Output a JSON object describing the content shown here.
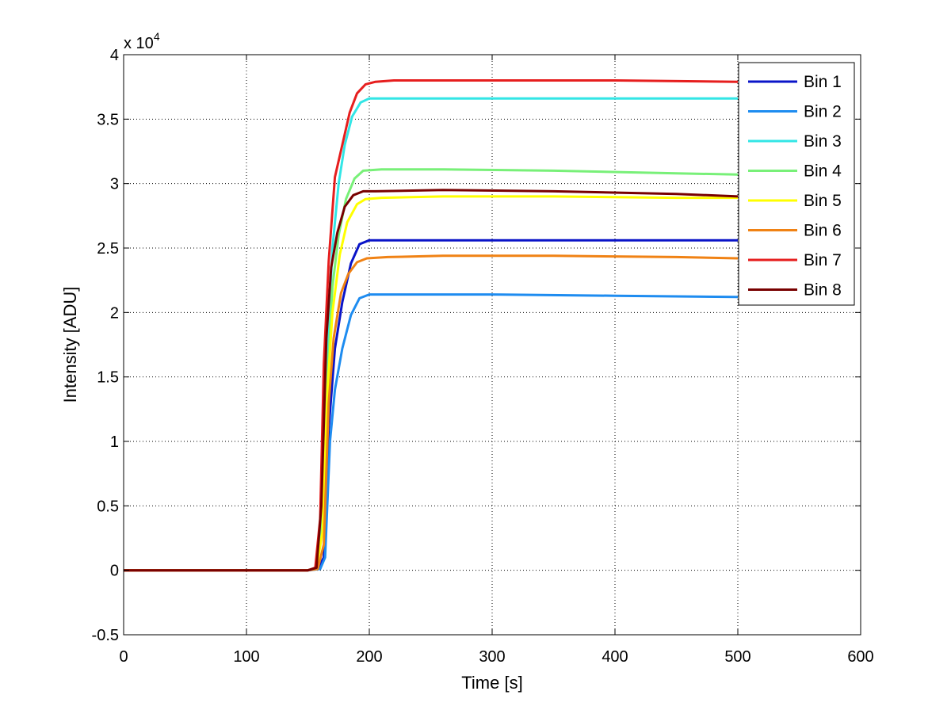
{
  "chart_data": {
    "type": "line",
    "title": "",
    "xlabel": "Time [s]",
    "ylabel": "Intensity [ADU]",
    "y_multiplier_label": "x 10",
    "y_multiplier_exponent": "4",
    "xlim": [
      0,
      600
    ],
    "ylim": [
      -0.5,
      4
    ],
    "xticks": [
      0,
      100,
      200,
      300,
      400,
      500,
      600
    ],
    "xtick_labels": [
      "0",
      "100",
      "200",
      "300",
      "400",
      "500",
      "600"
    ],
    "yticks": [
      -0.5,
      0,
      0.5,
      1,
      1.5,
      2,
      2.5,
      3,
      3.5,
      4
    ],
    "ytick_labels": [
      "-0.5",
      "0",
      "0.5",
      "1",
      "1.5",
      "2",
      "2.5",
      "3",
      "3.5",
      "4"
    ],
    "grid": true,
    "legend_position": "top-right",
    "series": [
      {
        "name": "Bin 1",
        "color": "#0a14c8",
        "x": [
          0,
          150,
          158,
          163,
          167,
          172,
          178,
          185,
          192,
          200,
          230,
          300,
          400,
          500
        ],
        "y": [
          0,
          0,
          0.01,
          0.1,
          1.1,
          1.72,
          2.08,
          2.38,
          2.53,
          2.56,
          2.56,
          2.56,
          2.56,
          2.56
        ]
      },
      {
        "name": "Bin 2",
        "color": "#1e8cf0",
        "x": [
          0,
          150,
          160,
          164,
          168,
          172,
          178,
          185,
          192,
          200,
          230,
          300,
          400,
          500
        ],
        "y": [
          0,
          0,
          0.01,
          0.1,
          1.0,
          1.4,
          1.72,
          1.98,
          2.11,
          2.14,
          2.14,
          2.14,
          2.13,
          2.12
        ]
      },
      {
        "name": "Bin 3",
        "color": "#32e6e6",
        "x": [
          0,
          150,
          157,
          162,
          166,
          170,
          175,
          180,
          186,
          193,
          200,
          230,
          300,
          400,
          500
        ],
        "y": [
          0,
          0,
          0.02,
          0.4,
          1.7,
          2.5,
          3.0,
          3.3,
          3.52,
          3.63,
          3.66,
          3.66,
          3.66,
          3.66,
          3.66
        ]
      },
      {
        "name": "Bin 4",
        "color": "#78f078",
        "x": [
          0,
          150,
          157,
          162,
          166,
          170,
          175,
          181,
          188,
          195,
          210,
          260,
          350,
          450,
          500
        ],
        "y": [
          0,
          0,
          0.02,
          0.4,
          1.5,
          2.2,
          2.6,
          2.88,
          3.04,
          3.1,
          3.11,
          3.11,
          3.1,
          3.08,
          3.07
        ]
      },
      {
        "name": "Bin 5",
        "color": "#ffff00",
        "x": [
          0,
          150,
          157,
          162,
          166,
          170,
          176,
          182,
          190,
          197,
          210,
          260,
          350,
          450,
          500
        ],
        "y": [
          0,
          0,
          0.02,
          0.3,
          1.4,
          2.0,
          2.45,
          2.7,
          2.84,
          2.88,
          2.89,
          2.9,
          2.9,
          2.89,
          2.89
        ]
      },
      {
        "name": "Bin 6",
        "color": "#f08214",
        "x": [
          0,
          150,
          158,
          163,
          167,
          171,
          177,
          183,
          190,
          198,
          215,
          260,
          350,
          450,
          500
        ],
        "y": [
          0,
          0,
          0.01,
          0.2,
          1.3,
          1.8,
          2.15,
          2.3,
          2.39,
          2.42,
          2.43,
          2.44,
          2.44,
          2.43,
          2.42
        ]
      },
      {
        "name": "Bin 7",
        "color": "#e61e1e",
        "x": [
          0,
          150,
          156,
          160,
          163,
          167,
          172,
          178,
          184,
          190,
          197,
          205,
          220,
          300,
          400,
          500
        ],
        "y": [
          0,
          0,
          0.02,
          0.4,
          1.6,
          2.4,
          3.05,
          3.3,
          3.55,
          3.7,
          3.77,
          3.79,
          3.8,
          3.8,
          3.8,
          3.79
        ]
      },
      {
        "name": "Bin 8",
        "color": "#780000",
        "x": [
          0,
          150,
          157,
          161,
          165,
          169,
          174,
          180,
          187,
          195,
          205,
          260,
          350,
          450,
          500
        ],
        "y": [
          0,
          0,
          0.02,
          0.5,
          1.8,
          2.35,
          2.62,
          2.82,
          2.91,
          2.94,
          2.94,
          2.95,
          2.94,
          2.92,
          2.9
        ]
      }
    ]
  }
}
